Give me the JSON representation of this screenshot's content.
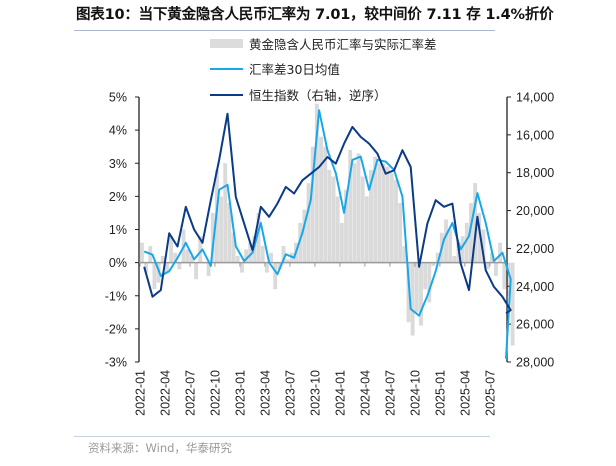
{
  "title": "图表10：当下黄金隐含人民币汇率为 7.01，较中间价 7.11 存 1.4%折价",
  "footer": "资料来源：Wind，华泰研究",
  "chart_data": {
    "type": "bar+line",
    "legend": [
      {
        "name": "黄金隐含人民币汇率与实际汇率差",
        "color": "#d9d9d9",
        "kind": "bar"
      },
      {
        "name": "汇率差30日均值",
        "color": "#1aa7e8",
        "kind": "line"
      },
      {
        "name": "恒生指数（右轴，逆序）",
        "color": "#0b3a86",
        "kind": "line"
      }
    ],
    "legend_position": "top-center",
    "left_axis": {
      "ticks": [
        "5%",
        "4%",
        "3%",
        "2%",
        "1%",
        "0%",
        "-1%",
        "-2%",
        "-3%"
      ],
      "range": [
        -3,
        5
      ],
      "unit": "%"
    },
    "right_axis": {
      "ticks": [
        "14,000",
        "16,000",
        "18,000",
        "20,000",
        "22,000",
        "24,000",
        "26,000",
        "28,000"
      ],
      "range": [
        14000,
        28000
      ],
      "reversed": true
    },
    "x_ticks": [
      "2022-01",
      "2022-04",
      "2022-07",
      "2022-10",
      "2023-01",
      "2023-04",
      "2023-07",
      "2023-10",
      "2024-01",
      "2024-04",
      "2024-07",
      "2024-10",
      "2025-01",
      "2025-04",
      "2025-07"
    ],
    "grid": false,
    "zero_line": true,
    "points": [
      {
        "month": "2022-01",
        "mean": 0.34,
        "hsi": 22970,
        "gap": [
          0.6,
          -0.3
        ]
      },
      {
        "month": "2022-02",
        "mean": 0.24,
        "hsi": 24550,
        "gap": [
          0.5,
          -0.8
        ]
      },
      {
        "month": "2022-03",
        "mean": -0.4,
        "hsi": 24200,
        "gap": [
          -0.6,
          0.2
        ]
      },
      {
        "month": "2022-04",
        "mean": -0.26,
        "hsi": 21200,
        "gap": [
          -0.3,
          0.8
        ]
      },
      {
        "month": "2022-05",
        "mean": 0.14,
        "hsi": 21900,
        "gap": [
          0.3,
          -0.2
        ]
      },
      {
        "month": "2022-06",
        "mean": 0.6,
        "hsi": 19800,
        "gap": [
          1.0,
          0.4
        ]
      },
      {
        "month": "2022-07",
        "mean": 0.1,
        "hsi": 21000,
        "gap": [
          0.2,
          -0.5
        ]
      },
      {
        "month": "2022-08",
        "mean": 0.4,
        "hsi": 21700,
        "gap": [
          0.8,
          0.0
        ]
      },
      {
        "month": "2022-09",
        "mean": -0.1,
        "hsi": 19450,
        "gap": [
          -0.4,
          1.5
        ]
      },
      {
        "month": "2022-10",
        "mean": 2.2,
        "hsi": 17340,
        "gap": [
          2.8,
          2.0
        ]
      },
      {
        "month": "2022-11",
        "mean": 2.35,
        "hsi": 14880,
        "gap": [
          3.0,
          1.8
        ]
      },
      {
        "month": "2022-12",
        "mean": 0.5,
        "hsi": 19280,
        "gap": [
          0.9,
          0.2
        ]
      },
      {
        "month": "2023-01",
        "mean": 0.05,
        "hsi": 20680,
        "gap": [
          -0.3,
          0.4
        ]
      },
      {
        "month": "2023-02",
        "mean": 0.3,
        "hsi": 22090,
        "gap": [
          0.6,
          0.8
        ]
      },
      {
        "month": "2023-03",
        "mean": 1.2,
        "hsi": 19800,
        "gap": [
          1.5,
          0.5
        ]
      },
      {
        "month": "2023-04",
        "mean": 0.0,
        "hsi": 20330,
        "gap": [
          -0.3,
          0.3
        ]
      },
      {
        "month": "2023-05",
        "mean": -0.35,
        "hsi": 19630,
        "gap": [
          -0.8,
          -0.2
        ]
      },
      {
        "month": "2023-06",
        "mean": 0.25,
        "hsi": 18750,
        "gap": [
          0.5,
          0.1
        ]
      },
      {
        "month": "2023-07",
        "mean": 0.15,
        "hsi": 19100,
        "gap": [
          0.3,
          0.6
        ]
      },
      {
        "month": "2023-08",
        "mean": 0.9,
        "hsi": 18400,
        "gap": [
          1.2,
          1.6
        ]
      },
      {
        "month": "2023-09",
        "mean": 1.9,
        "hsi": 18050,
        "gap": [
          2.4,
          3.5
        ]
      },
      {
        "month": "2023-10",
        "mean": 4.6,
        "hsi": 17700,
        "gap": [
          4.8,
          3.8
        ]
      },
      {
        "month": "2023-11",
        "mean": 3.4,
        "hsi": 17170,
        "gap": [
          3.5,
          2.8
        ]
      },
      {
        "month": "2023-12",
        "mean": 2.7,
        "hsi": 17520,
        "gap": [
          2.6,
          2.0
        ]
      },
      {
        "month": "2024-01",
        "mean": 1.5,
        "hsi": 16460,
        "gap": [
          1.2,
          2.2
        ]
      },
      {
        "month": "2024-02",
        "mean": 3.1,
        "hsi": 15580,
        "gap": [
          3.4,
          3.0
        ]
      },
      {
        "month": "2024-03",
        "mean": 3.2,
        "hsi": 16110,
        "gap": [
          3.3,
          2.6
        ]
      },
      {
        "month": "2024-04",
        "mean": 2.2,
        "hsi": 16460,
        "gap": [
          2.0,
          2.8
        ]
      },
      {
        "month": "2024-05",
        "mean": 3.1,
        "hsi": 16990,
        "gap": [
          3.2,
          3.0
        ]
      },
      {
        "month": "2024-06",
        "mean": 3.05,
        "hsi": 18050,
        "gap": [
          3.0,
          2.9
        ]
      },
      {
        "month": "2024-07",
        "mean": 2.8,
        "hsi": 17870,
        "gap": [
          2.7,
          2.5
        ]
      },
      {
        "month": "2024-08",
        "mean": 2.0,
        "hsi": 16810,
        "gap": [
          1.8,
          0.5
        ]
      },
      {
        "month": "2024-09",
        "mean": -1.4,
        "hsi": 17700,
        "gap": [
          -1.8,
          -2.2
        ]
      },
      {
        "month": "2024-10",
        "mean": -1.6,
        "hsi": 22970,
        "gap": [
          -1.5,
          -1.9
        ]
      },
      {
        "month": "2024-11",
        "mean": -1.0,
        "hsi": 20680,
        "gap": [
          -0.8,
          -1.2
        ]
      },
      {
        "month": "2024-12",
        "mean": -0.26,
        "hsi": 19450,
        "gap": [
          -0.1,
          0.3
        ]
      },
      {
        "month": "2025-01",
        "mean": 0.7,
        "hsi": 19800,
        "gap": [
          0.9,
          1.3
        ]
      },
      {
        "month": "2025-02",
        "mean": 1.2,
        "hsi": 19630,
        "gap": [
          1.0,
          0.2
        ]
      },
      {
        "month": "2025-03",
        "mean": 0.4,
        "hsi": 22800,
        "gap": [
          0.6,
          0.8
        ]
      },
      {
        "month": "2025-04",
        "mean": 0.8,
        "hsi": 24200,
        "gap": [
          1.2,
          1.8
        ]
      },
      {
        "month": "2025-05",
        "mean": 2.1,
        "hsi": 20330,
        "gap": [
          2.4,
          1.5
        ]
      },
      {
        "month": "2025-06",
        "mean": 1.2,
        "hsi": 23150,
        "gap": [
          1.0,
          -0.2
        ]
      },
      {
        "month": "2025-07",
        "mean": 0.05,
        "hsi": 24030,
        "gap": [
          0.3,
          -0.4
        ]
      },
      {
        "month": "2025-08",
        "mean": 0.3,
        "hsi": 24550,
        "gap": [
          0.6,
          -0.8
        ]
      },
      {
        "month": "2025-09",
        "mean": -0.5,
        "hsi": 25260,
        "gap": [
          -1.0,
          -2.5
        ]
      },
      {
        "month": "2025-09",
        "mean": -2.9,
        "hsi": 25430,
        "gap": []
      }
    ]
  }
}
